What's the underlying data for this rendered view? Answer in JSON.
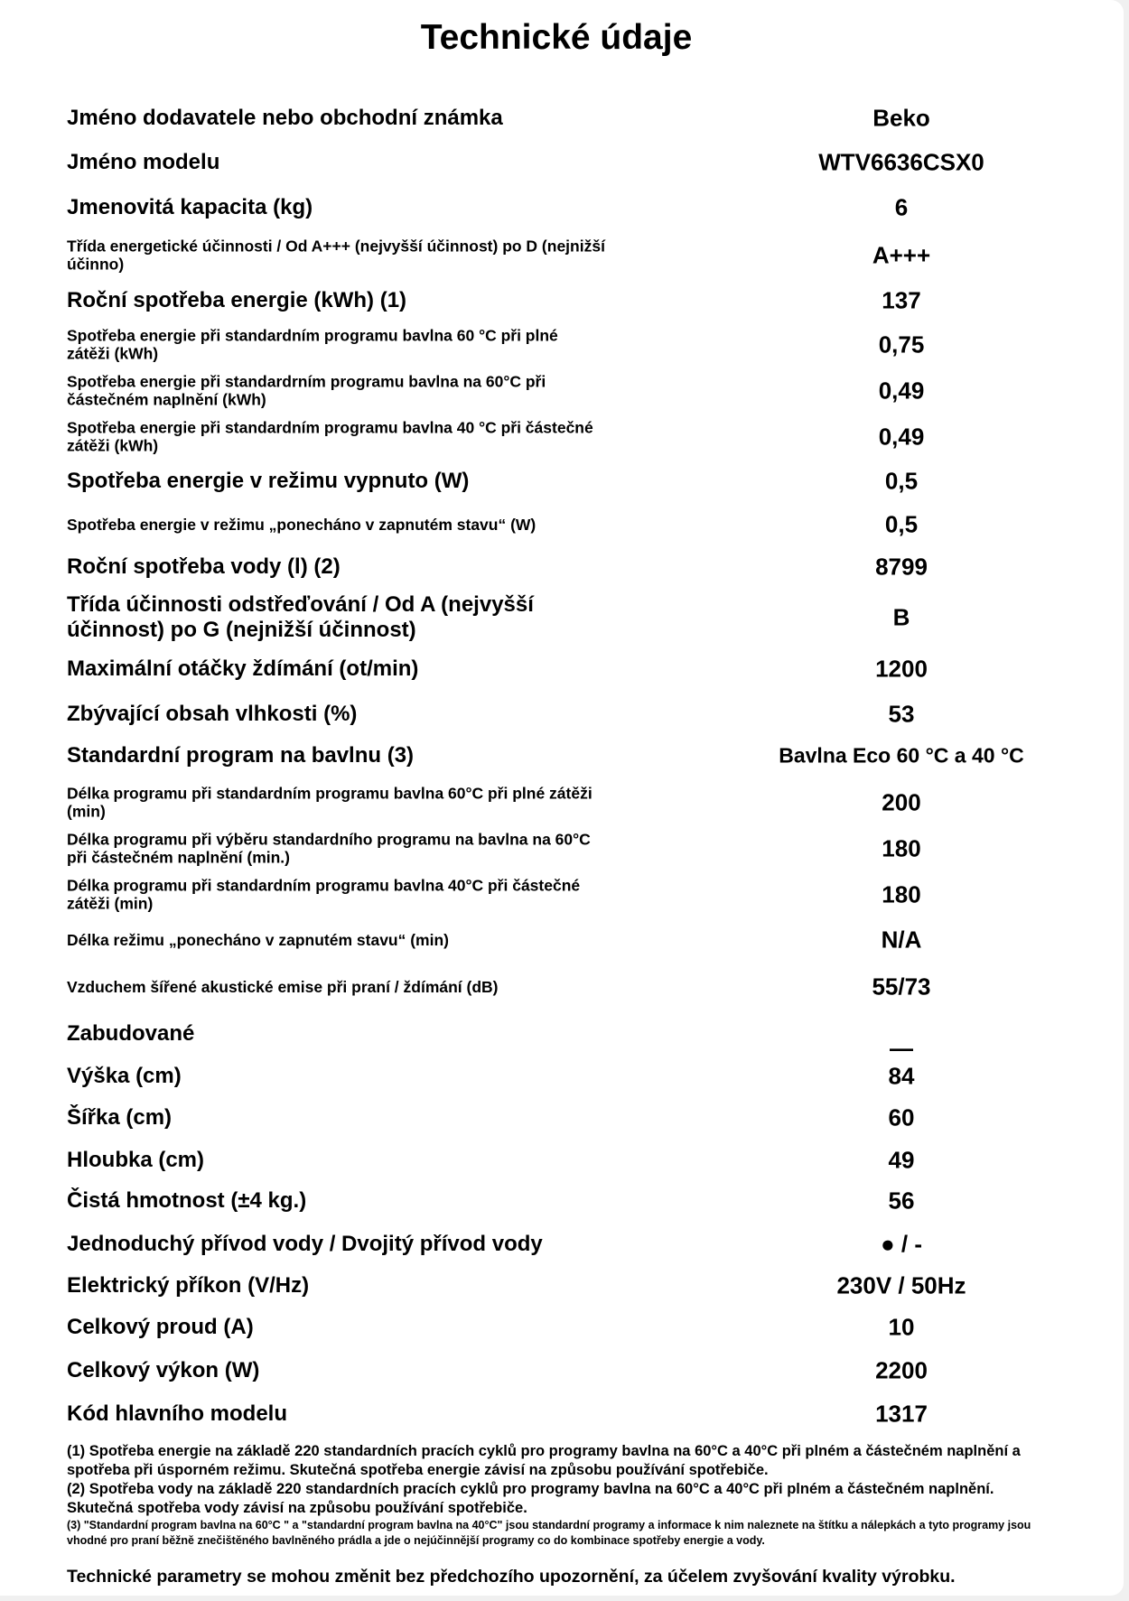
{
  "title": "Technické údaje",
  "rows": [
    {
      "label": "Jméno dodavatele nebo obchodní známka",
      "value": "Beko",
      "size": "big"
    },
    {
      "label": "Jméno modelu",
      "value": "WTV6636CSX0",
      "size": "big"
    },
    {
      "label": "Jmenovitá kapacita (kg)",
      "value": "6",
      "size": "big"
    },
    {
      "label": "Třída energetické účinnosti / Od A+++ (nejvyšší účinnost) po D (nejnižší\núčinno)",
      "value": "A+++",
      "size": "small"
    },
    {
      "label": "Roční spotřeba energie (kWh) (1)",
      "value": "137",
      "size": "big"
    },
    {
      "label": "Spotřeba energie při standardním programu bavlna 60 °C při plné\nzátěži (kWh)",
      "value": "0,75",
      "size": "small"
    },
    {
      "label": "Spotřeba energie při standardrním programu bavlna na 60°C při\nčástečném naplnění (kWh)",
      "value": "0,49",
      "size": "small"
    },
    {
      "label": "Spotřeba energie při standardním programu bavlna 40 °C při částečné\nzátěži (kWh)",
      "value": "0,49",
      "size": "small"
    },
    {
      "label": "Spotřeba energie v režimu vypnuto (W)",
      "value": "0,5",
      "size": "big"
    },
    {
      "label": "Spotřeba energie v režimu „ponecháno v zapnutém stavu“ (W)",
      "value": "0,5",
      "size": "small"
    },
    {
      "label": "Roční spotřeba vody (l) (2)",
      "value": "8799",
      "size": "big"
    },
    {
      "label": "Třída účinnosti odstřeďování / Od A (nejvyšší\núčinnost) po G (nejnižší účinnost)",
      "value": "B",
      "size": "big"
    },
    {
      "label": "Maximální otáčky ždímání (ot/min)",
      "value": "1200",
      "size": "big"
    },
    {
      "label": "Zbývající obsah vlhkosti (%)",
      "value": "53",
      "size": "big"
    },
    {
      "label": "Standardní program na bavlnu (3)",
      "value": "Bavlna Eco 60 °C a 40 °C",
      "size": "big"
    },
    {
      "label": "Délka programu při standardním programu bavlna 60°C při plné zátěži\n(min)",
      "value": "200",
      "size": "small"
    },
    {
      "label": "Délka programu při výběru standardního programu na bavlna na 60°C\npři částečném naplnění (min.)",
      "value": "180",
      "size": "small"
    },
    {
      "label": "Délka programu při standardním programu bavlna 40°C při částečné\nzátěži (min)",
      "value": "180",
      "size": "small"
    },
    {
      "label": "Délka režimu „ponecháno v zapnutém stavu“ (min)",
      "value": "N/A",
      "size": "small"
    },
    {
      "label": "Vzduchem šířené akustické emise při praní / ždímání (dB)",
      "value": "55/73",
      "size": "small"
    },
    {
      "label": "Zabudované",
      "value": "—",
      "size": "big"
    },
    {
      "label": "Výška (cm)",
      "value": "84",
      "size": "big"
    },
    {
      "label": "Šířka (cm)",
      "value": "60",
      "size": "big"
    },
    {
      "label": "Hloubka (cm)",
      "value": "49",
      "size": "big"
    },
    {
      "label": "Čistá hmotnost (±4 kg.)",
      "value": "56",
      "size": "big"
    },
    {
      "label": "Jednoduchý přívod vody / Dvojitý přívod vody",
      "value": "● / -",
      "size": "big"
    },
    {
      "label": "Elektrický příkon (V/Hz)",
      "value": "230V / 50Hz",
      "size": "big"
    },
    {
      "label": "Celkový proud (A)",
      "value": "10",
      "size": "big"
    },
    {
      "label": "Celkový výkon (W)",
      "value": "2200",
      "size": "big"
    },
    {
      "label": "Kód hlavního modelu",
      "value": "1317",
      "size": "big"
    }
  ],
  "footnotes": {
    "note1": "(1) Spotřeba energie na základě 220 standardních pracích cyklů pro programy bavlna na 60°C a 40°C při plném a částečném naplnění a spotřeba při úsporném režimu. Skutečná spotřeba energie závisí na způsobu používání spotřebiče.",
    "note2": "(2) Spotřeba vody na základě 220 standardních pracích cyklů pro programy bavlna na 60°C a 40°C při plném a částečném naplnění. Skutečná spotřeba vody závisí na způsobu používání spotřebiče.",
    "note3": "(3) \"Standardní program bavlna na 60°C \" a \"standardní program bavlna na 40°C\" jsou standardní programy a informace k nim naleznete na štítku a nálepkách a tyto programy jsou vhodné pro praní běžně znečištěného bavlněného prádla a jde o nejúčinnější programy co do kombinace spotřeby energie a vody."
  },
  "disclaimer": "Technické parametry se mohou změnit bez předchozího upozornění, za účelem zvyšování kvality výrobku."
}
